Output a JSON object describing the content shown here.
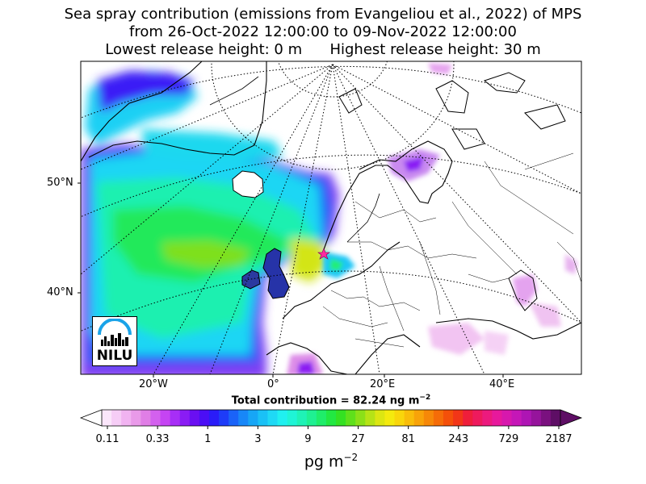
{
  "title": {
    "line1": "Sea spray contribution (emissions from Evangeliou et al., 2022) of MPS",
    "line2": "from 26-Oct-2022 12:00:00 to 09-Nov-2022 12:00:00",
    "line3": "Lowest release height: 0 m      Highest release height: 30 m"
  },
  "axes": {
    "lat_labels": [
      "50°N",
      "40°N"
    ],
    "lon_labels": [
      "20°W",
      "0°",
      "20°E",
      "40°E"
    ]
  },
  "total": "Total contribution = 82.24 ng m",
  "total_exp": "−2",
  "colorbar": {
    "tick_labels": [
      "0.11",
      "0.33",
      "1",
      "3",
      "9",
      "27",
      "81",
      "243",
      "729",
      "2187"
    ],
    "colors": [
      "#fbe6fb",
      "#f6cdf6",
      "#f1b3f1",
      "#e99ae9",
      "#e07ee6",
      "#d361ee",
      "#c544f3",
      "#a72ef6",
      "#8a1cf4",
      "#6a0ff2",
      "#4b0ef5",
      "#2a1cf8",
      "#1e3cf8",
      "#1a63f8",
      "#1887f8",
      "#17a6f6",
      "#1ac1f6",
      "#1fd9f5",
      "#20f0f0",
      "#1ff4d6",
      "#1ff2b6",
      "#1ff092",
      "#1fed6a",
      "#22e842",
      "#34e122",
      "#5fe01b",
      "#8be018",
      "#b6e316",
      "#dce612",
      "#f4ea0e",
      "#f9d60b",
      "#f9bd0a",
      "#f8a309",
      "#f68808",
      "#f56c08",
      "#f4500a",
      "#f23618",
      "#ef1e3b",
      "#ee1a5d",
      "#ec1a7e",
      "#e7199c",
      "#d718ad",
      "#c517b7",
      "#ae15b4",
      "#96149c",
      "#7a117f",
      "#5e0e65"
    ],
    "unit": "pg m",
    "unit_exp": "−2"
  },
  "logo": {
    "text": "NILU"
  }
}
